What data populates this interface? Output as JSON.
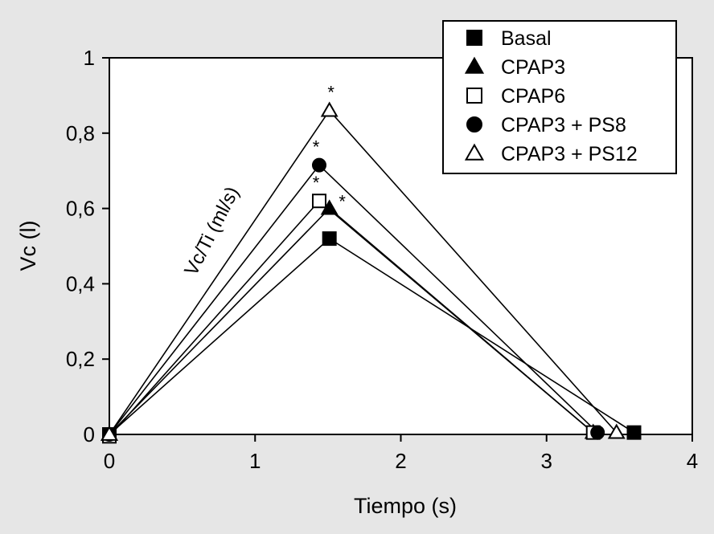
{
  "chart_data": {
    "type": "line",
    "xlabel": "Tiempo (s)",
    "ylabel": "Vc (l)",
    "xlim": [
      0,
      4
    ],
    "ylim": [
      0,
      1
    ],
    "xticks": [
      0,
      1,
      2,
      3,
      4
    ],
    "xtick_labels": [
      "0",
      "1",
      "2",
      "3",
      "4"
    ],
    "yticks": [
      0,
      0.2,
      0.4,
      0.6,
      0.8,
      1
    ],
    "ytick_labels": [
      "0",
      "0,2",
      "0,4",
      "0,6",
      "0,8",
      "1"
    ],
    "annotation": "Vc/Ti (ml/s)",
    "grid": false,
    "legend_position": "top-right",
    "series": [
      {
        "name": "Basal",
        "marker": "square-filled",
        "points": [
          [
            0,
            0
          ],
          [
            1.51,
            0.52
          ],
          [
            3.6,
            0.005
          ]
        ],
        "significant": false
      },
      {
        "name": "CPAP3",
        "marker": "triangle-filled",
        "points": [
          [
            0,
            0
          ],
          [
            1.51,
            0.6
          ],
          [
            3.32,
            0.005
          ]
        ],
        "significant": true
      },
      {
        "name": "CPAP6",
        "marker": "square-open",
        "points": [
          [
            0,
            -0.005
          ],
          [
            1.44,
            0.62
          ],
          [
            3.32,
            0.005
          ]
        ],
        "significant": true
      },
      {
        "name": "CPAP3 + PS8",
        "marker": "circle-filled",
        "points": [
          [
            0,
            0
          ],
          [
            1.44,
            0.715
          ],
          [
            3.35,
            0.005
          ]
        ],
        "significant": true
      },
      {
        "name": "CPAP3 + PS12",
        "marker": "triangle-open",
        "points": [
          [
            0,
            0
          ],
          [
            1.51,
            0.86
          ],
          [
            3.48,
            0.005
          ]
        ],
        "significant": true
      }
    ],
    "significance_marker": "*"
  }
}
